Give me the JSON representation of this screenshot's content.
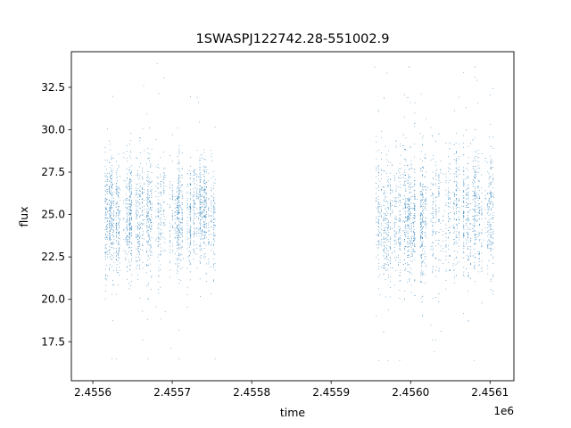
{
  "chart_data": {
    "type": "scatter",
    "title": "1SWASPJ122742.28-551002.9",
    "xlabel": "time",
    "ylabel": "flux",
    "x_offset_label": "1e6",
    "x_tick_labels": [
      "2.4556",
      "2.4557",
      "2.4558",
      "2.4559",
      "2.4560",
      "2.4561"
    ],
    "x_ticks": [
      2455600,
      2455700,
      2455800,
      2455900,
      2456000,
      2456100
    ],
    "y_tick_labels": [
      "17.5",
      "20.0",
      "22.5",
      "25.0",
      "27.5",
      "30.0",
      "32.5"
    ],
    "y_ticks": [
      17.5,
      20.0,
      22.5,
      25.0,
      27.5,
      30.0,
      32.5
    ],
    "xlim": [
      2455573,
      2456130
    ],
    "ylim": [
      15.2,
      34.6
    ],
    "grid": false,
    "marker_color": "#1f77b4",
    "series": [
      {
        "observing_seasons": [
          {
            "time_range": [
              2455614,
              2455755
            ],
            "flux_median": 25.0,
            "flux_typical_range": [
              22.5,
              27.5
            ],
            "flux_extreme_range": [
              16.5,
              33.9
            ]
          },
          {
            "time_range": [
              2455955,
              2456107
            ],
            "flux_median": 25.0,
            "flux_typical_range": [
              22.0,
              28.0
            ],
            "flux_extreme_range": [
              16.4,
              33.7
            ]
          }
        ],
        "points": [
          [
            2455617,
            25.4
          ],
          [
            2455622,
            24.1
          ],
          [
            2455628,
            26.3
          ],
          [
            2455634,
            23.2
          ],
          [
            2455641,
            25.9
          ],
          [
            2455648,
            22.7
          ],
          [
            2455655,
            26.8
          ],
          [
            2455661,
            24.5
          ],
          [
            2455668,
            25.1
          ],
          [
            2455674,
            21.3
          ],
          [
            2455681,
            27.2
          ],
          [
            2455688,
            23.9
          ],
          [
            2455694,
            25.6
          ],
          [
            2455701,
            24.2
          ],
          [
            2455708,
            26.1
          ],
          [
            2455714,
            22.4
          ],
          [
            2455721,
            25.3
          ],
          [
            2455728,
            23.8
          ],
          [
            2455734,
            26.5
          ],
          [
            2455741,
            24.9
          ],
          [
            2455748,
            21.9
          ],
          [
            2455753,
            25.7
          ],
          [
            2455664,
            32.6
          ],
          [
            2455681,
            33.9
          ],
          [
            2455663,
            17.6
          ],
          [
            2455698,
            17.1
          ],
          [
            2455624,
            16.5
          ],
          [
            2455959,
            24.6
          ],
          [
            2455966,
            26.2
          ],
          [
            2455973,
            23.1
          ],
          [
            2455980,
            25.8
          ],
          [
            2455987,
            22.9
          ],
          [
            2455994,
            27.1
          ],
          [
            2456001,
            24.4
          ],
          [
            2456008,
            25.9
          ],
          [
            2456015,
            23.6
          ],
          [
            2456022,
            26.6
          ],
          [
            2456029,
            24.0
          ],
          [
            2456036,
            21.8
          ],
          [
            2456043,
            25.2
          ],
          [
            2456050,
            27.4
          ],
          [
            2456057,
            23.3
          ],
          [
            2456064,
            25.5
          ],
          [
            2456071,
            22.6
          ],
          [
            2456078,
            26.9
          ],
          [
            2456085,
            24.7
          ],
          [
            2456092,
            23.5
          ],
          [
            2456099,
            25.4
          ],
          [
            2456105,
            26.0
          ],
          [
            2455955,
            33.7
          ],
          [
            2456000,
            31.6
          ],
          [
            2456070,
            31.3
          ],
          [
            2456030,
            16.9
          ],
          [
            2456080,
            16.4
          ]
        ]
      }
    ]
  }
}
